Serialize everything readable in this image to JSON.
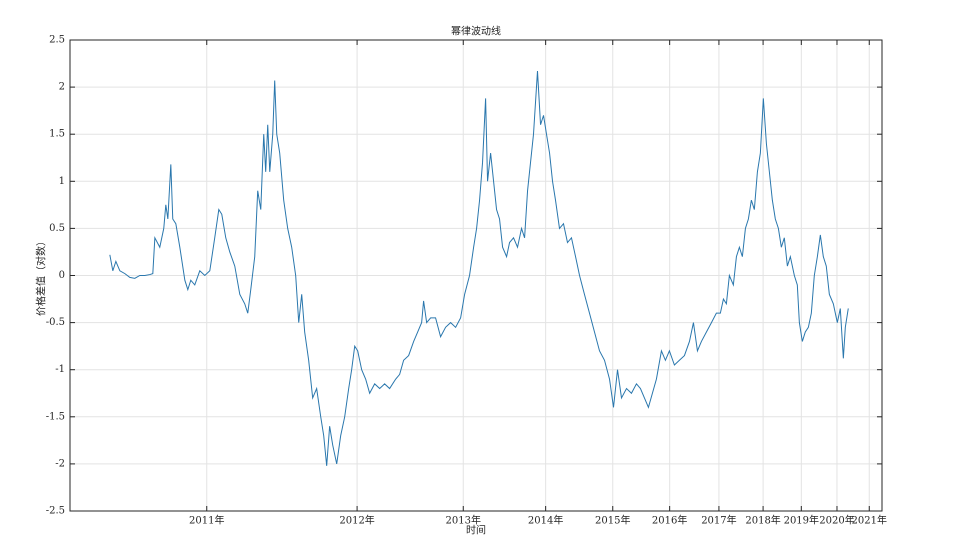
{
  "chart_data": {
    "type": "line",
    "title": "幂律波动线",
    "xlabel": "时间",
    "ylabel": "价格差值（对数）",
    "grid": true,
    "xlim": [
      2.701,
      3.657
    ],
    "xticks": [
      {
        "value": 2.862,
        "label": "2011年"
      },
      {
        "value": 3.039,
        "label": "2012年"
      },
      {
        "value": 3.164,
        "label": "2013年"
      },
      {
        "value": 3.261,
        "label": "2014年"
      },
      {
        "value": 3.34,
        "label": "2015年"
      },
      {
        "value": 3.407,
        "label": "2016年"
      },
      {
        "value": 3.465,
        "label": "2017年"
      },
      {
        "value": 3.517,
        "label": "2018年"
      },
      {
        "value": 3.562,
        "label": "2019年"
      },
      {
        "value": 3.604,
        "label": "2020年"
      },
      {
        "value": 3.642,
        "label": "2021年"
      }
    ],
    "ylim": [
      -2.5,
      2.5
    ],
    "yticks": [
      -2.5,
      -2,
      -1.5,
      -1,
      -0.5,
      0,
      0.5,
      1,
      1.5,
      2,
      2.5
    ],
    "x": [
      2.7479,
      2.7514,
      2.755,
      2.7597,
      2.7656,
      2.7714,
      2.7773,
      2.7832,
      2.7891,
      2.795,
      2.7985,
      2.8009,
      2.8067,
      2.8114,
      2.8138,
      2.8162,
      2.8197,
      2.822,
      2.8256,
      2.8303,
      2.8362,
      2.8397,
      2.8432,
      2.8479,
      2.8538,
      2.8597,
      2.8656,
      2.8714,
      2.8762,
      2.8797,
      2.8844,
      2.8891,
      2.895,
      2.9009,
      2.9067,
      2.9103,
      2.9138,
      2.9185,
      2.922,
      2.9256,
      2.9291,
      2.9314,
      2.9338,
      2.9362,
      2.9397,
      2.942,
      2.9444,
      2.9479,
      2.9526,
      2.9573,
      2.962,
      2.9667,
      2.9703,
      2.9738,
      2.9773,
      2.982,
      2.9867,
      2.9914,
      2.9962,
      2.9997,
      3.0032,
      3.0067,
      3.0103,
      3.015,
      3.0197,
      3.0244,
      3.0291,
      3.0326,
      3.0362,
      3.0397,
      3.0444,
      3.0491,
      3.0538,
      3.0597,
      3.0656,
      3.0714,
      3.0773,
      3.0844,
      3.0891,
      3.0938,
      3.0997,
      3.1056,
      3.1103,
      3.115,
      3.1173,
      3.1209,
      3.1256,
      3.1314,
      3.1373,
      3.1432,
      3.1491,
      3.155,
      3.1609,
      3.1656,
      3.1714,
      3.1762,
      3.1797,
      3.1832,
      3.1867,
      3.1903,
      3.1926,
      3.1962,
      3.1997,
      3.2032,
      3.2067,
      3.2103,
      3.215,
      3.2185,
      3.2232,
      3.2279,
      3.2326,
      3.2362,
      3.2397,
      3.2432,
      3.2467,
      3.2514,
      3.255,
      3.2585,
      3.262,
      3.2656,
      3.2691,
      3.2726,
      3.2773,
      3.282,
      3.2867,
      3.2914,
      3.2962,
      3.3009,
      3.3067,
      3.3126,
      3.3185,
      3.3244,
      3.3303,
      3.3362,
      3.3409,
      3.3456,
      3.3503,
      3.3562,
      3.362,
      3.3679,
      3.3726,
      3.3773,
      3.382,
      3.3867,
      3.3914,
      3.3973,
      3.402,
      3.4067,
      3.4126,
      3.4185,
      3.4244,
      3.4303,
      3.435,
      3.4397,
      3.4444,
      3.4503,
      3.4562,
      3.462,
      3.4667,
      3.4703,
      3.4738,
      3.4773,
      3.482,
      3.4856,
      3.4891,
      3.4926,
      3.4962,
      3.4997,
      3.5032,
      3.5067,
      3.5103,
      3.5138,
      3.5173,
      3.5209,
      3.5244,
      3.5279,
      3.5314,
      3.535,
      3.5385,
      3.542,
      3.5456,
      3.5491,
      3.5538,
      3.5573,
      3.5597,
      3.5632,
      3.5667,
      3.5703,
      3.5738,
      3.5773,
      3.5809,
      3.5844,
      3.5879,
      3.5914,
      3.595,
      3.5997,
      3.6044,
      3.6079,
      3.6115,
      3.6138,
      3.6173
    ],
    "series": [
      {
        "color": "#2a77ad",
        "values": [
          0.22,
          0.05,
          0.15,
          0.05,
          0.02,
          -0.02,
          -0.03,
          0.0,
          0.0,
          0.01,
          0.02,
          0.4,
          0.3,
          0.5,
          0.75,
          0.6,
          1.18,
          0.6,
          0.55,
          0.3,
          -0.05,
          -0.15,
          -0.05,
          -0.1,
          0.05,
          0.0,
          0.05,
          0.4,
          0.7,
          0.65,
          0.4,
          0.25,
          0.1,
          -0.2,
          -0.3,
          -0.4,
          -0.15,
          0.2,
          0.9,
          0.7,
          1.5,
          1.1,
          1.6,
          1.1,
          1.5,
          2.07,
          1.5,
          1.3,
          0.8,
          0.5,
          0.3,
          0.0,
          -0.5,
          -0.2,
          -0.6,
          -0.9,
          -1.3,
          -1.2,
          -1.5,
          -1.7,
          -2.02,
          -1.6,
          -1.8,
          -2.0,
          -1.7,
          -1.5,
          -1.2,
          -1.0,
          -0.75,
          -0.8,
          -1.0,
          -1.1,
          -1.25,
          -1.15,
          -1.2,
          -1.15,
          -1.2,
          -1.1,
          -1.05,
          -0.9,
          -0.85,
          -0.7,
          -0.6,
          -0.5,
          -0.27,
          -0.5,
          -0.45,
          -0.45,
          -0.65,
          -0.55,
          -0.5,
          -0.55,
          -0.45,
          -0.2,
          0.0,
          0.3,
          0.5,
          0.8,
          1.2,
          1.88,
          1.0,
          1.3,
          1.0,
          0.7,
          0.6,
          0.3,
          0.2,
          0.35,
          0.4,
          0.3,
          0.5,
          0.4,
          0.9,
          1.2,
          1.5,
          2.17,
          1.6,
          1.7,
          1.5,
          1.3,
          1.0,
          0.8,
          0.5,
          0.55,
          0.35,
          0.4,
          0.2,
          0.0,
          -0.2,
          -0.4,
          -0.6,
          -0.8,
          -0.9,
          -1.1,
          -1.4,
          -1.0,
          -1.3,
          -1.2,
          -1.25,
          -1.15,
          -1.2,
          -1.3,
          -1.4,
          -1.25,
          -1.1,
          -0.8,
          -0.9,
          -0.8,
          -0.95,
          -0.9,
          -0.85,
          -0.7,
          -0.5,
          -0.8,
          -0.7,
          -0.6,
          -0.5,
          -0.4,
          -0.4,
          -0.25,
          -0.3,
          0.0,
          -0.1,
          0.2,
          0.3,
          0.2,
          0.5,
          0.6,
          0.8,
          0.7,
          1.1,
          1.3,
          1.88,
          1.4,
          1.1,
          0.8,
          0.6,
          0.5,
          0.3,
          0.4,
          0.1,
          0.2,
          0.0,
          -0.1,
          -0.5,
          -0.7,
          -0.6,
          -0.55,
          -0.4,
          0.0,
          0.2,
          0.43,
          0.2,
          0.1,
          -0.2,
          -0.3,
          -0.5,
          -0.35,
          -0.88,
          -0.55,
          -0.35
        ]
      }
    ]
  }
}
